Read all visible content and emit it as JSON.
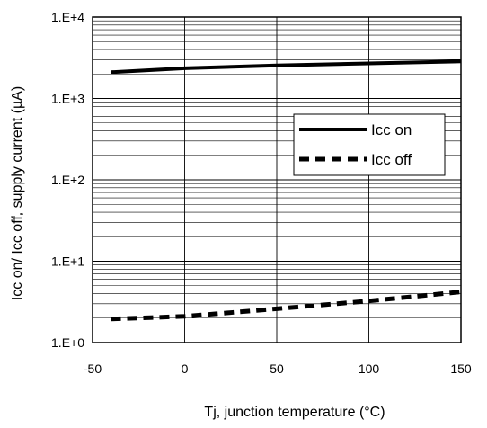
{
  "chart_data": {
    "type": "line",
    "xlabel": "Tj, junction temperature (°C)",
    "ylabel": "Icc on/ Icc off, supply current (µA)",
    "x_scale": "linear",
    "y_scale": "log",
    "xlim": [
      -50,
      150
    ],
    "ylim": [
      1,
      10000
    ],
    "x_ticks": [
      -50,
      0,
      50,
      100,
      150
    ],
    "x_tick_labels": [
      "-50",
      "0",
      "50",
      "100",
      "150"
    ],
    "y_ticks": [
      1,
      10,
      100,
      1000,
      10000
    ],
    "y_tick_labels": [
      "1.E+0",
      "1.E+1",
      "1.E+2",
      "1.E+3",
      "1.E+4"
    ],
    "grid": true,
    "legend_position": "right",
    "series": [
      {
        "name": "Icc on",
        "style": "solid",
        "color": "#000000",
        "x": [
          -40,
          0,
          50,
          100,
          150
        ],
        "y": [
          2100,
          2350,
          2550,
          2700,
          2850
        ]
      },
      {
        "name": "Icc off",
        "style": "dashed",
        "color": "#000000",
        "x": [
          -40,
          0,
          50,
          100,
          150
        ],
        "y": [
          1.95,
          2.1,
          2.6,
          3.25,
          4.2
        ]
      }
    ]
  }
}
